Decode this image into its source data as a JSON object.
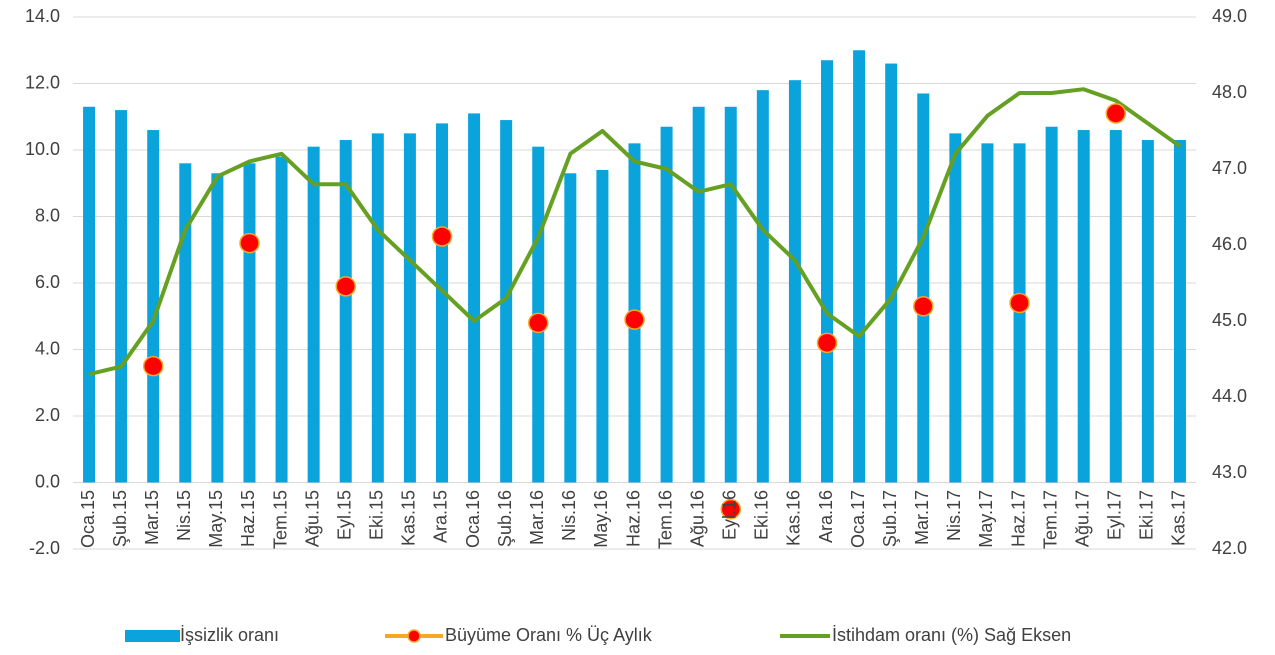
{
  "chart_data": {
    "type": "bar",
    "categories": [
      "Oca.15",
      "Şub.15",
      "Mar.15",
      "Nis.15",
      "May.15",
      "Haz.15",
      "Tem.15",
      "Ağu.15",
      "Eyl.15",
      "Eki.15",
      "Kas.15",
      "Ara.15",
      "Oca.16",
      "Şub.16",
      "Mar.16",
      "Nis.16",
      "May.16",
      "Haz.16",
      "Tem.16",
      "Ağu.16",
      "Eyl.16",
      "Eki.16",
      "Kas.16",
      "Ara.16",
      "Oca.17",
      "Şub.17",
      "Mar.17",
      "Nis.17",
      "May.17",
      "Haz.17",
      "Tem.17",
      "Ağu.17",
      "Eyl.17",
      "Eki.17",
      "Kas.17"
    ],
    "series": [
      {
        "name": "İşsizlik oranı",
        "type": "bar",
        "color": "#0ba3db",
        "values": [
          11.3,
          11.2,
          10.6,
          9.6,
          9.3,
          9.6,
          9.8,
          10.1,
          10.3,
          10.5,
          10.5,
          10.8,
          11.1,
          10.9,
          10.1,
          9.3,
          9.4,
          10.2,
          10.7,
          11.3,
          11.3,
          11.8,
          12.1,
          12.7,
          13.0,
          12.6,
          11.7,
          10.5,
          10.2,
          10.2,
          10.7,
          10.6,
          10.6,
          10.3,
          10.3
        ]
      },
      {
        "name": "Büyüme Oranı % Üç Aylık",
        "type": "scatter",
        "color": "#ff0000",
        "edge_color": "#f7a823",
        "values": [
          null,
          null,
          3.5,
          null,
          null,
          7.2,
          null,
          null,
          5.9,
          null,
          null,
          7.4,
          null,
          null,
          4.8,
          null,
          null,
          4.9,
          null,
          null,
          -0.8,
          null,
          null,
          4.2,
          null,
          null,
          5.3,
          null,
          null,
          5.4,
          null,
          null,
          11.1,
          null,
          null
        ]
      },
      {
        "name": "İstihdam oranı (%) Sağ Eksen",
        "type": "line",
        "color": "#65a022",
        "axis": "y2",
        "values": [
          44.3,
          44.4,
          45.0,
          46.2,
          46.9,
          47.1,
          47.2,
          46.8,
          46.8,
          46.2,
          45.8,
          45.4,
          45.0,
          45.3,
          46.1,
          47.2,
          47.5,
          47.1,
          47.0,
          46.7,
          46.8,
          46.2,
          45.8,
          45.1,
          44.8,
          45.3,
          46.1,
          47.2,
          47.7,
          48.0,
          48.0,
          48.05,
          47.9,
          47.6,
          47.3
        ]
      }
    ],
    "ylim": [
      -2,
      14
    ],
    "yticks": [
      {
        "value": -2,
        "label": "-2.0"
      },
      {
        "value": 0,
        "label": "0.0"
      },
      {
        "value": 2,
        "label": "2.0"
      },
      {
        "value": 4,
        "label": "4.0"
      },
      {
        "value": 6,
        "label": "6.0"
      },
      {
        "value": 8,
        "label": "8.0"
      },
      {
        "value": 10,
        "label": "10.0"
      },
      {
        "value": 12,
        "label": "12.0"
      },
      {
        "value": 14,
        "label": "14.0"
      }
    ],
    "y2lim": [
      42,
      49
    ],
    "y2ticks": [
      {
        "value": 42,
        "label": "42.0"
      },
      {
        "value": 43,
        "label": "43.0"
      },
      {
        "value": 44,
        "label": "44.0"
      },
      {
        "value": 45,
        "label": "45.0"
      },
      {
        "value": 46,
        "label": "46.0"
      },
      {
        "value": 47,
        "label": "47.0"
      },
      {
        "value": 48,
        "label": "48.0"
      },
      {
        "value": 49,
        "label": "49.0"
      }
    ],
    "grid": true,
    "legend": "bottom"
  }
}
